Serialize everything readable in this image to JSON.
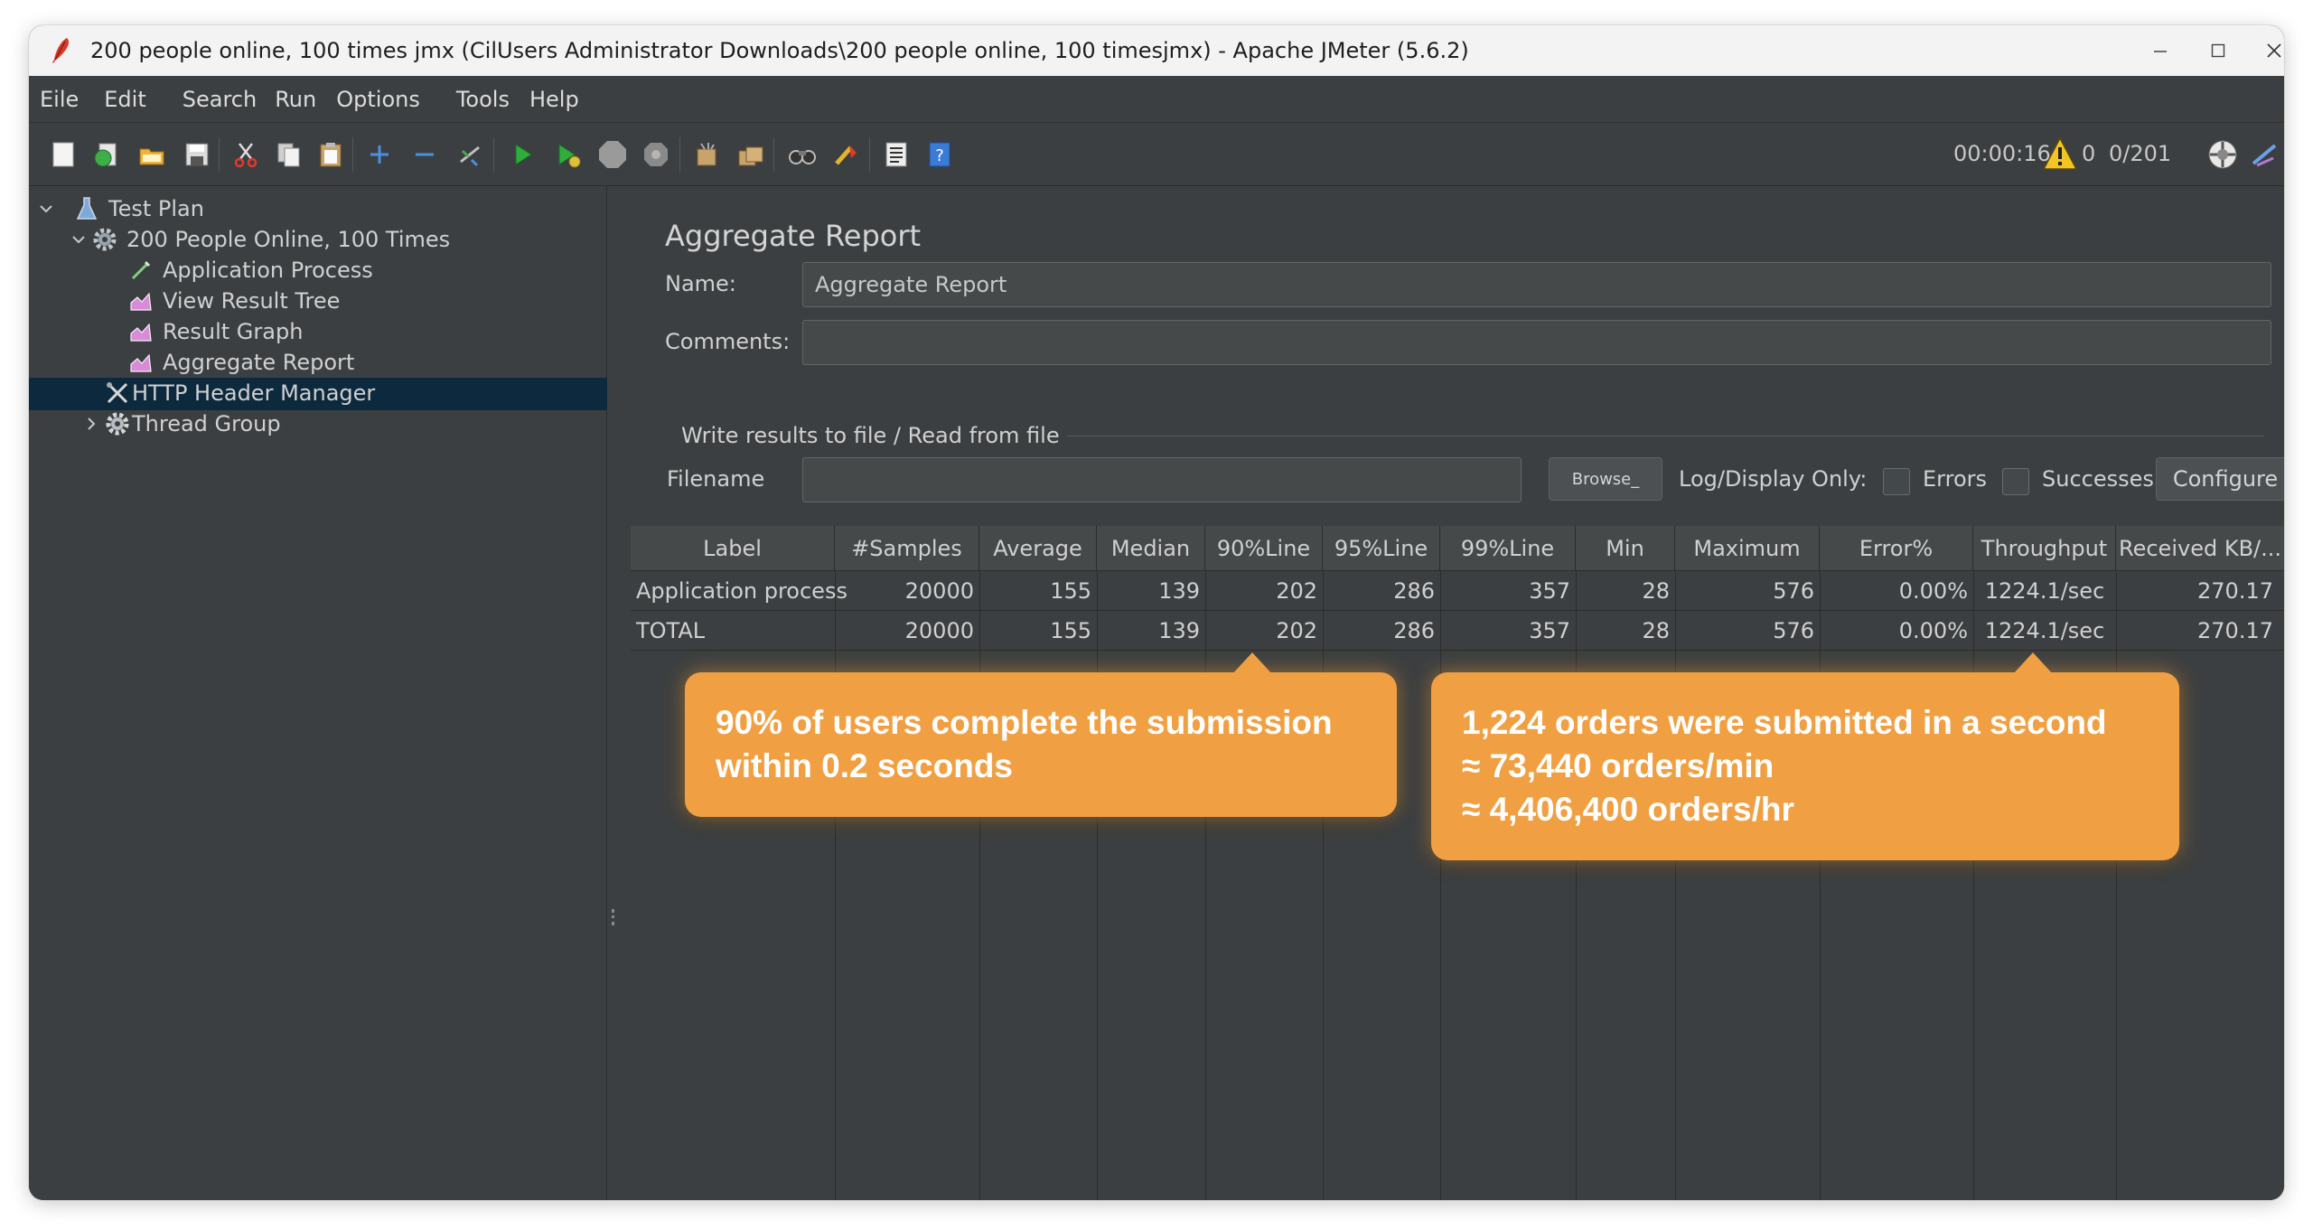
{
  "window": {
    "title": "200 people online, 100 times jmx (CilUsers Administrator Downloads\\200 people online, 100 timesjmx) - Apache JMeter (5.6.2)"
  },
  "menu": [
    "Eile",
    "Edit",
    "Search",
    "Run",
    "Options",
    "Tools",
    "Help"
  ],
  "toolbar": {
    "icons": [
      "new-icon",
      "templates-icon",
      "open-icon",
      "save-icon",
      "cut-icon",
      "copy-icon",
      "paste-icon",
      "expand-icon",
      "collapse-icon",
      "toggle-icon",
      "start-icon",
      "start-no-pause-icon",
      "stop-icon",
      "shutdown-icon",
      "clear-icon",
      "clear-all-icon",
      "search-icon",
      "reset-search-icon",
      "function-helper-icon",
      "help-icon"
    ],
    "timer": "00:00:16",
    "warnings": "0",
    "threads": "0/201"
  },
  "tree": {
    "test_plan": "Test Plan",
    "scenario": "200 People Online, 100 Times",
    "children": [
      "Application Process",
      "View Result Tree",
      "Result Graph",
      "Aggregate Report"
    ],
    "header_manager": "HTTP Header Manager",
    "thread_group": "Thread Group"
  },
  "panel": {
    "title": "Aggregate Report",
    "name_label": "Name:",
    "name_value": "Aggregate Report",
    "comments_label": "Comments:",
    "comments_value": "",
    "file_section": "Write results to file / Read from file",
    "filename_label": "Filename",
    "filename_value": "",
    "browse": "Browse_",
    "log_display": "Log/Display Only:",
    "errors": "Errors",
    "successes": "Successes",
    "configure": "Configure"
  },
  "table": {
    "headers": [
      "Label",
      "#Samples",
      "Average",
      "Median",
      "90%Line",
      "95%Line",
      "99%Line",
      "Min",
      "Maximum",
      "Error%",
      "Throughput",
      "Received KB/..."
    ],
    "rows": [
      [
        "Application process",
        "20000",
        "155",
        "139",
        "202",
        "286",
        "357",
        "28",
        "576",
        "0.00%",
        "1224.1/sec",
        "270.17"
      ],
      [
        "TOTAL",
        "20000",
        "155",
        "139",
        "202",
        "286",
        "357",
        "28",
        "576",
        "0.00%",
        "1224.1/sec",
        "270.17"
      ]
    ]
  },
  "callouts": {
    "left": [
      "90% of users complete the submission",
      "within 0.2 seconds"
    ],
    "right": [
      "1,224 orders were submitted in a second",
      "≈ 73,440 orders/min",
      "≈ 4,406,400 orders/hr"
    ],
    "accent_color": "#f0a043"
  }
}
